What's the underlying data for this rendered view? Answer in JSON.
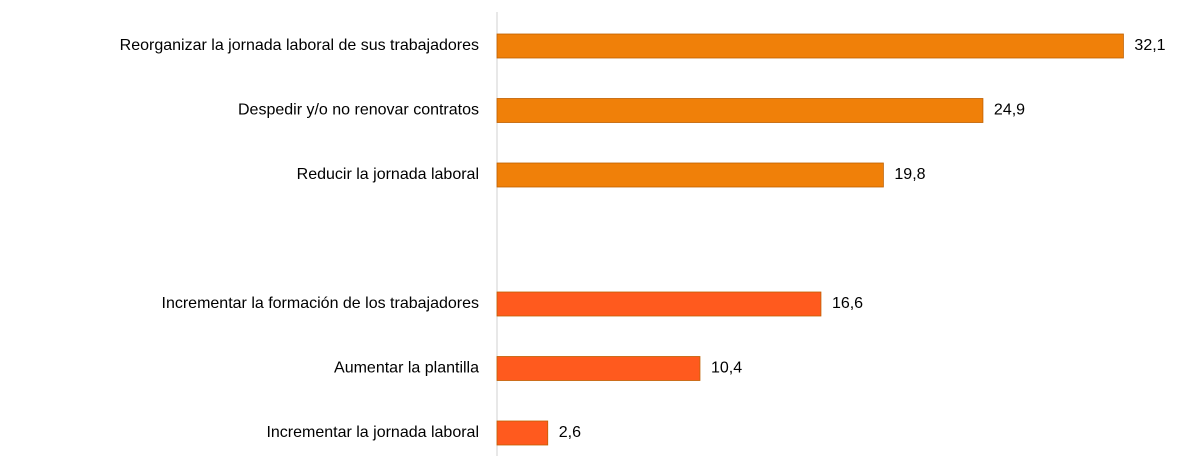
{
  "chart_data": {
    "type": "hbar",
    "categories": [
      "Reorganizar la jornada laboral de sus trabajadores",
      "Despedir y/o no renovar contratos",
      "Reducir la jornada laboral",
      null,
      "Incrementar la formación de los trabajadores",
      "Aumentar la plantilla",
      "Incrementar la jornada laboral"
    ],
    "values": [
      32.1,
      24.9,
      19.8,
      null,
      16.6,
      10.4,
      2.6
    ],
    "value_labels": [
      "32,1",
      "24,9",
      "19,8",
      null,
      "16,6",
      "10,4",
      "2,6"
    ],
    "colors": [
      "#f08009",
      "#f08009",
      "#f08009",
      null,
      "#ff5a1e",
      "#ff5a1e",
      "#ff5a1e"
    ],
    "xlim": [
      0,
      33
    ]
  }
}
